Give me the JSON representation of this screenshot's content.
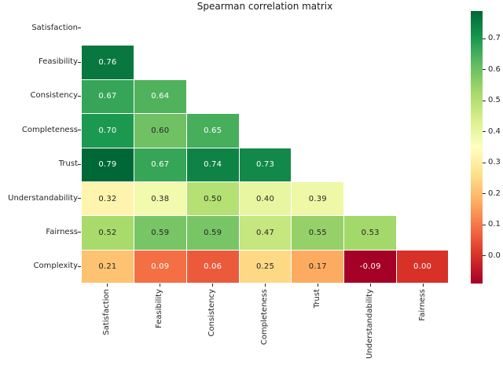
{
  "title": "Spearman correlation matrix",
  "chart_data": {
    "type": "heatmap",
    "title": "Spearman correlation matrix",
    "row_labels": [
      "Satisfaction",
      "Feasibility",
      "Consistency",
      "Completeness",
      "Trust",
      "Understandability",
      "Fairness",
      "Complexity"
    ],
    "col_labels": [
      "Satisfaction",
      "Feasibility",
      "Consistency",
      "Completeness",
      "Trust",
      "Understandability",
      "Fairness"
    ],
    "matrix": [
      [
        null,
        null,
        null,
        null,
        null,
        null,
        null
      ],
      [
        0.76,
        null,
        null,
        null,
        null,
        null,
        null
      ],
      [
        0.67,
        0.64,
        null,
        null,
        null,
        null,
        null
      ],
      [
        0.7,
        0.6,
        0.65,
        null,
        null,
        null,
        null
      ],
      [
        0.79,
        0.67,
        0.74,
        0.73,
        null,
        null,
        null
      ],
      [
        0.32,
        0.38,
        0.5,
        0.4,
        0.39,
        null,
        null
      ],
      [
        0.52,
        0.59,
        0.59,
        0.47,
        0.55,
        0.53,
        null
      ],
      [
        0.21,
        0.09,
        0.06,
        0.25,
        0.17,
        -0.09,
        0.0
      ]
    ],
    "mask": "upper-triangle-and-diagonal",
    "value_format": ".2f",
    "vmin": -0.09,
    "vmax": 0.79,
    "colormap": {
      "name": "RdYlGn",
      "anchors": [
        "#a50026",
        "#d73027",
        "#f46d43",
        "#fdae61",
        "#fee08b",
        "#ffffbf",
        "#d9ef8b",
        "#a6d96a",
        "#66bd63",
        "#1a9850",
        "#006837"
      ]
    },
    "colorbar_ticks": [
      0.0,
      0.1,
      0.2,
      0.3,
      0.4,
      0.5,
      0.6,
      0.7
    ],
    "colorbar_tick_format": ".1f",
    "annotation_dark_text_color": "#262626",
    "annotation_light_text_color": "#ffffff",
    "grid_line_color": "#ffffff",
    "legend_position": "right-colorbar",
    "background": "#ffffff"
  }
}
